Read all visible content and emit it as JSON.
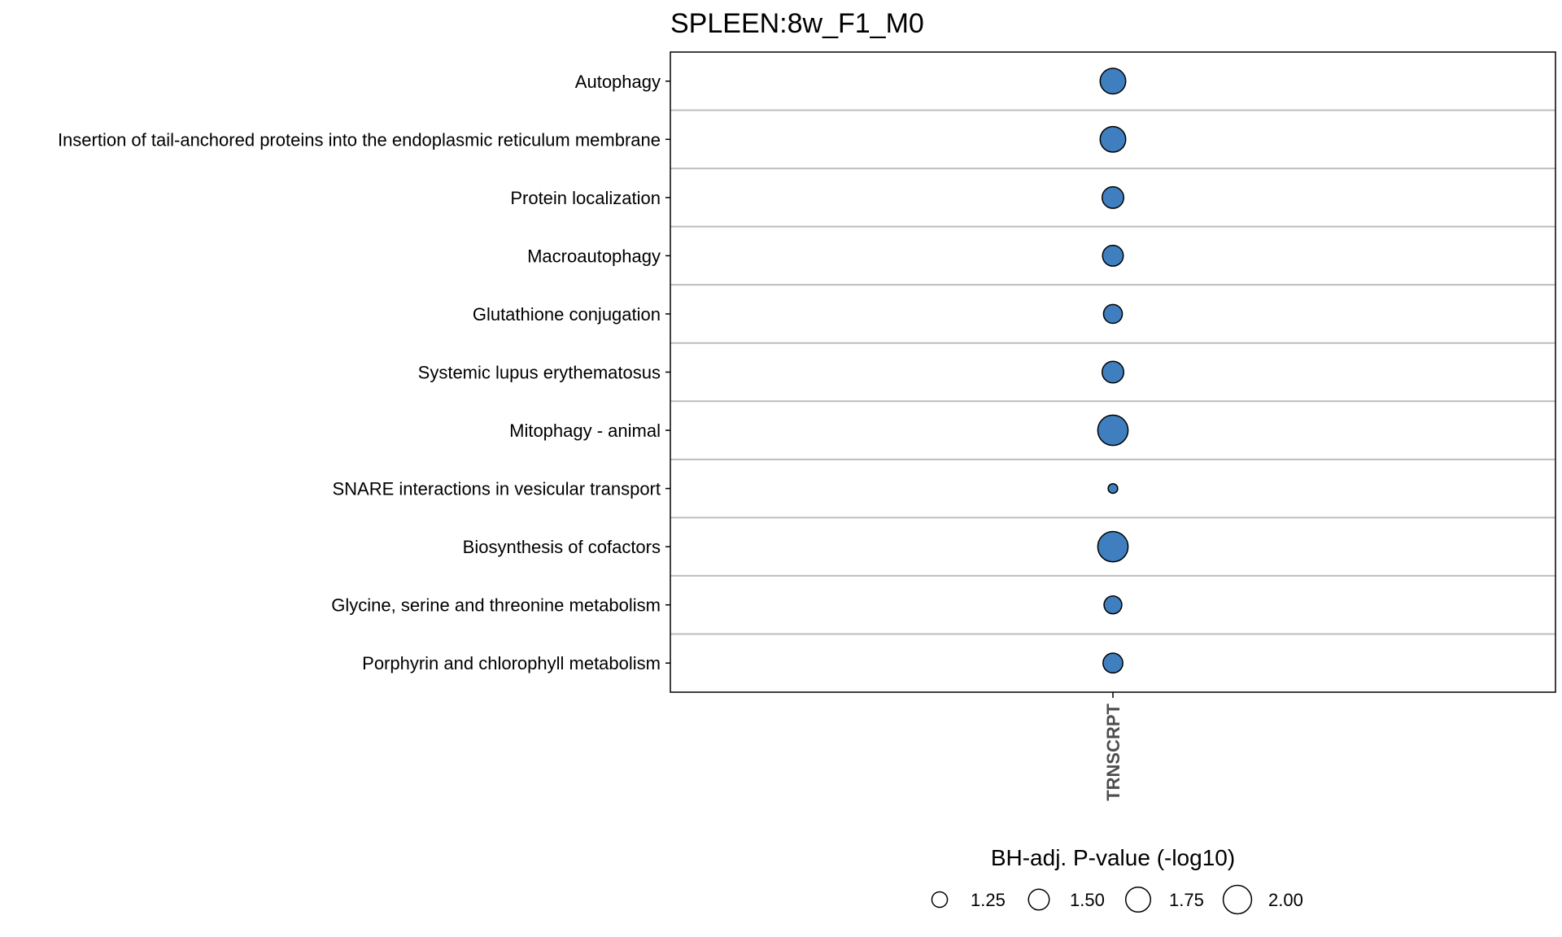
{
  "chart_data": {
    "type": "scatter",
    "title": "SPLEEN:8w_F1_M0",
    "xlabel": "",
    "ylabel": "",
    "grid": true,
    "x_categories": [
      "TRNSCRPT"
    ],
    "categories": [
      "Autophagy",
      "Insertion of tail-anchored proteins into the endoplasmic reticulum membrane",
      "Protein localization",
      "Macroautophagy",
      "Glutathione conjugation",
      "Systemic lupus erythematosus",
      "Mitophagy - animal",
      "SNARE interactions in vesicular transport",
      "Biosynthesis of cofactors",
      "Glycine, serine and threonine metabolism",
      "Porphyrin and chlorophyll metabolism"
    ],
    "series": [
      {
        "x": "TRNSCRPT",
        "values": [
          1.8,
          1.8,
          1.55,
          1.5,
          1.4,
          1.55,
          2.15,
          1.05,
          2.15,
          1.35,
          1.45
        ],
        "color": "#3f7fc0"
      }
    ],
    "size_legend": {
      "title": "BH-adj. P-value (-log10)",
      "breaks": [
        1.25,
        1.5,
        1.75,
        2.0
      ],
      "labels": [
        "1.25",
        "1.50",
        "1.75",
        "2.00"
      ],
      "position": "bottom"
    },
    "colors": {
      "point_fill": "#3f7fc0",
      "point_stroke": "#000000",
      "grid": "#bdbdbd",
      "panel_border": "#000000"
    }
  }
}
